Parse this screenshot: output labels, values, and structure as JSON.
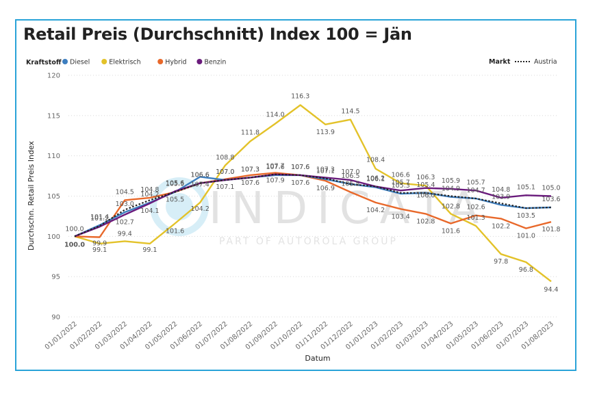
{
  "title": "Retail Preis (Durchschnitt) Index 100 = Jän",
  "legend": {
    "title": "Kraftstoff",
    "markt_title": "Markt",
    "markt_series": "Austria"
  },
  "watermark": {
    "brand": "INDICATA",
    "tagline": "PART OF AUTOROLA GROUP"
  },
  "chart_data": {
    "type": "line",
    "xlabel": "Datum",
    "ylabel": "Durchschn. Retail Preis Index",
    "ylim": [
      90,
      120
    ],
    "yticks": [
      90,
      95,
      100,
      105,
      110,
      115,
      120
    ],
    "grid": true,
    "legend_position": "top-left",
    "categories": [
      "01/01/2022",
      "01/02/2022",
      "01/03/2022",
      "01/04/2022",
      "01/05/2022",
      "01/06/2022",
      "01/07/2022",
      "01/08/2022",
      "01/09/2022",
      "01/10/2022",
      "01/11/2022",
      "01/12/2022",
      "01/01/2023",
      "01/02/2023",
      "01/03/2023",
      "01/04/2023",
      "01/05/2023",
      "01/06/2023",
      "01/07/2023",
      "01/08/2023"
    ],
    "series": [
      {
        "name": "Elektrisch",
        "color": "#e3c229",
        "values": [
          100.0,
          99.1,
          99.4,
          99.1,
          101.6,
          104.2,
          108.8,
          111.8,
          114.0,
          116.3,
          113.9,
          114.5,
          108.4,
          106.6,
          106.3,
          102.8,
          101.3,
          97.8,
          96.8,
          94.4
        ]
      },
      {
        "name": "Hybrid",
        "color": "#e8682a",
        "values": [
          100.0,
          99.9,
          104.5,
          104.8,
          105.5,
          106.6,
          107.1,
          107.6,
          107.9,
          107.6,
          106.9,
          105.5,
          104.2,
          103.4,
          102.8,
          101.6,
          102.6,
          102.2,
          101.0,
          101.8
        ]
      },
      {
        "name": "Diesel",
        "color": "#3d7ebf",
        "values": [
          100.0,
          101.4,
          103.0,
          104.2,
          105.5,
          107.4,
          107.0,
          107.3,
          107.6,
          107.6,
          107.1,
          106.5,
          106.1,
          105.3,
          105.4,
          104.9,
          104.7,
          103.9,
          103.5,
          103.6
        ]
      },
      {
        "name": "Benzin",
        "color": "#6a1b7c",
        "values": [
          100.0,
          101.2,
          102.7,
          104.1,
          105.6,
          106.6,
          107.0,
          107.3,
          107.7,
          107.6,
          107.3,
          107.0,
          106.2,
          105.7,
          106.0,
          105.9,
          105.7,
          104.8,
          105.1,
          105.0
        ]
      },
      {
        "name": "Austria",
        "color": "#222222",
        "dashed": true,
        "values": [
          100.0,
          101.3,
          103.3,
          104.5,
          105.5,
          106.6,
          107.0,
          107.3,
          107.7,
          107.6,
          107.2,
          106.5,
          106.2,
          105.4,
          105.4,
          105.0,
          104.7,
          104.1,
          103.5,
          103.6
        ]
      }
    ]
  }
}
